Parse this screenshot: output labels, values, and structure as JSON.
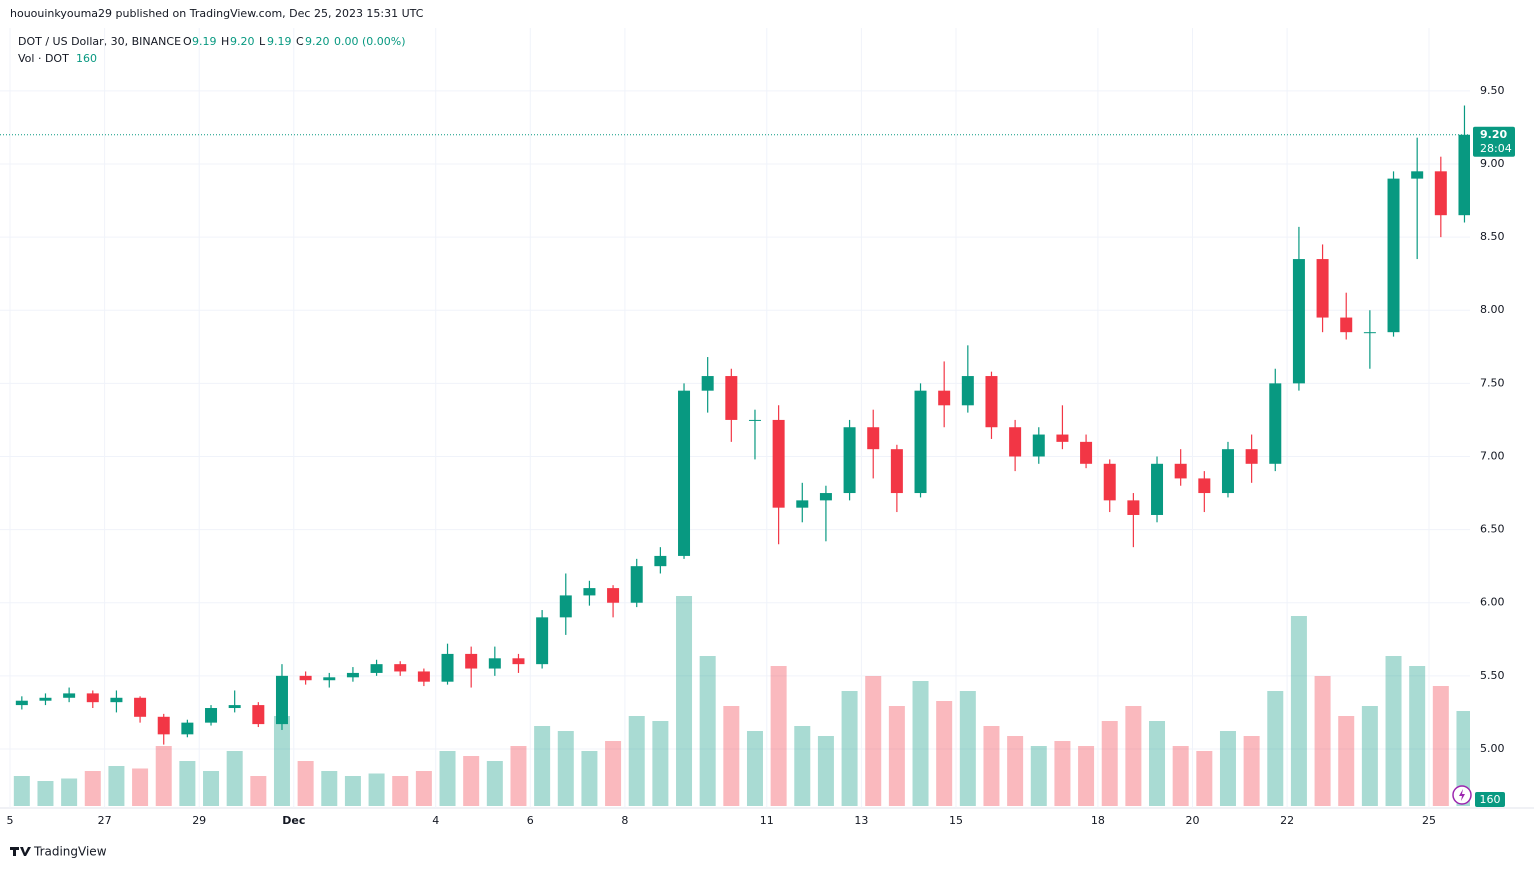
{
  "header": {
    "publisher": "hououinkyouma29 published on TradingView.com, Dec 25, 2023 15:31 UTC"
  },
  "legend": {
    "symbol": "DOT / US Dollar, 30, BINANCE",
    "o_label": "O",
    "o": "9.19",
    "h_label": "H",
    "h": "9.20",
    "l_label": "L",
    "l": "9.19",
    "c_label": "C",
    "c": "9.20",
    "change": "0.00 (0.00%)",
    "vol_label": "Vol · DOT",
    "vol_value": "160"
  },
  "chart_data": {
    "type": "candlestick",
    "categories": [
      "5",
      null,
      null,
      null,
      "27",
      null,
      null,
      null,
      "29",
      null,
      null,
      null,
      "Dec",
      null,
      null,
      null,
      null,
      null,
      "4",
      null,
      null,
      null,
      "6",
      null,
      null,
      null,
      "8",
      null,
      null,
      null,
      null,
      null,
      "11",
      null,
      null,
      null,
      "13",
      null,
      null,
      null,
      "15",
      null,
      null,
      null,
      null,
      null,
      "18",
      null,
      null,
      null,
      "20",
      null,
      null,
      null,
      "22",
      null,
      null,
      null,
      null,
      null,
      "25",
      null
    ],
    "open": [
      5.3,
      5.33,
      5.35,
      5.38,
      5.32,
      5.35,
      5.22,
      5.1,
      5.18,
      5.28,
      5.3,
      5.17,
      5.5,
      5.47,
      5.49,
      5.52,
      5.58,
      5.53,
      5.46,
      5.65,
      5.55,
      5.62,
      5.58,
      5.9,
      6.05,
      6.1,
      6.0,
      6.25,
      6.32,
      7.45,
      7.55,
      7.25,
      7.25,
      6.65,
      6.7,
      6.75,
      7.2,
      7.05,
      6.75,
      7.45,
      7.35,
      7.55,
      7.2,
      7.0,
      7.15,
      7.1,
      6.95,
      6.7,
      6.6,
      6.95,
      6.85,
      6.75,
      7.05,
      6.95,
      7.5,
      8.35,
      7.95,
      7.85,
      7.85,
      8.9,
      8.95,
      8.65
    ],
    "high": [
      5.36,
      5.38,
      5.42,
      5.4,
      5.4,
      5.36,
      5.24,
      5.2,
      5.3,
      5.4,
      5.32,
      5.58,
      5.53,
      5.52,
      5.56,
      5.61,
      5.6,
      5.55,
      5.72,
      5.7,
      5.7,
      5.65,
      5.95,
      6.2,
      6.15,
      6.12,
      6.3,
      6.38,
      7.5,
      7.68,
      7.6,
      7.32,
      7.35,
      6.82,
      6.8,
      7.25,
      7.32,
      7.08,
      7.5,
      7.65,
      7.76,
      7.58,
      7.25,
      7.2,
      7.35,
      7.15,
      6.98,
      6.75,
      7.0,
      7.05,
      6.9,
      7.1,
      7.15,
      7.6,
      8.57,
      8.45,
      8.12,
      8.0,
      8.95,
      9.18,
      9.05,
      9.4
    ],
    "low": [
      5.27,
      5.3,
      5.32,
      5.28,
      5.25,
      5.18,
      5.03,
      5.08,
      5.16,
      5.25,
      5.15,
      5.13,
      5.44,
      5.42,
      5.46,
      5.5,
      5.5,
      5.43,
      5.44,
      5.42,
      5.5,
      5.52,
      5.55,
      5.78,
      5.98,
      5.9,
      5.97,
      6.2,
      6.3,
      7.3,
      7.1,
      6.98,
      6.4,
      6.55,
      6.42,
      6.7,
      6.85,
      6.62,
      6.72,
      7.2,
      7.3,
      7.12,
      6.9,
      6.95,
      7.05,
      6.92,
      6.62,
      6.38,
      6.55,
      6.8,
      6.62,
      6.72,
      6.82,
      6.9,
      7.45,
      7.85,
      7.8,
      7.6,
      7.82,
      8.35,
      8.5,
      8.6
    ],
    "close": [
      5.33,
      5.35,
      5.38,
      5.32,
      5.35,
      5.22,
      5.1,
      5.18,
      5.28,
      5.3,
      5.17,
      5.5,
      5.47,
      5.49,
      5.52,
      5.58,
      5.53,
      5.46,
      5.65,
      5.55,
      5.62,
      5.58,
      5.9,
      6.05,
      6.1,
      6.0,
      6.25,
      6.32,
      7.45,
      7.55,
      7.25,
      7.25,
      6.65,
      6.7,
      6.75,
      7.2,
      7.05,
      6.75,
      7.45,
      7.35,
      7.55,
      7.2,
      7.0,
      7.15,
      7.1,
      6.95,
      6.7,
      6.6,
      6.95,
      6.85,
      6.75,
      7.05,
      6.95,
      7.5,
      8.35,
      7.95,
      7.85,
      7.85,
      8.9,
      8.95,
      8.65,
      9.2
    ],
    "volume": [
      60000,
      50000,
      55000,
      70000,
      80000,
      75000,
      120000,
      90000,
      70000,
      110000,
      60000,
      180000,
      90000,
      70000,
      60000,
      65000,
      60000,
      70000,
      110000,
      100000,
      90000,
      120000,
      160000,
      150000,
      110000,
      130000,
      180000,
      170000,
      420000,
      300000,
      200000,
      150000,
      280000,
      160000,
      140000,
      230000,
      260000,
      200000,
      250000,
      210000,
      230000,
      160000,
      140000,
      120000,
      130000,
      120000,
      170000,
      200000,
      170000,
      120000,
      110000,
      150000,
      140000,
      230000,
      380000,
      260000,
      180000,
      200000,
      300000,
      280000,
      240000,
      190000
    ],
    "vlim": [
      0,
      1000000
    ],
    "up_color": "#089981",
    "down_color": "#f23645",
    "ylim": [
      4.61,
      9.93
    ],
    "yticks": [
      {
        "value": 5,
        "label": "5.00"
      },
      {
        "value": 5.5,
        "label": "5.50"
      },
      {
        "value": 6,
        "label": "6.00"
      },
      {
        "value": 6.5,
        "label": "6.50"
      },
      {
        "value": 7,
        "label": "7.00"
      },
      {
        "value": 7.5,
        "label": "7.50"
      },
      {
        "value": 8,
        "label": "8.00"
      },
      {
        "value": 8.5,
        "label": "8.50"
      },
      {
        "value": 9,
        "label": "9.00"
      },
      {
        "value": 9.5,
        "label": "9.50"
      }
    ],
    "last_price": {
      "value": 9.2,
      "label": "9.20"
    },
    "countdown": "28:04",
    "grid": true
  },
  "footer": {
    "brand": "TradingView"
  }
}
